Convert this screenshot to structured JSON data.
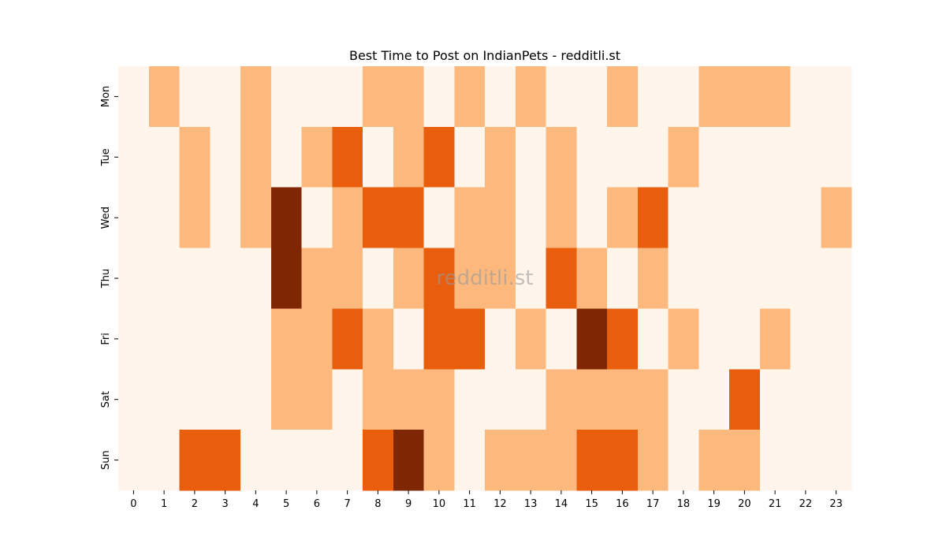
{
  "chart_data": {
    "type": "heatmap",
    "title": "Best Time to Post on IndianPets - redditli.st",
    "watermark": "redditli.st",
    "xlabel": "",
    "ylabel": "",
    "x_categories": [
      "0",
      "1",
      "2",
      "3",
      "4",
      "5",
      "6",
      "7",
      "8",
      "9",
      "10",
      "11",
      "12",
      "13",
      "14",
      "15",
      "16",
      "17",
      "18",
      "19",
      "20",
      "21",
      "22",
      "23"
    ],
    "y_categories": [
      "Mon",
      "Tue",
      "Wed",
      "Thu",
      "Fri",
      "Sat",
      "Sun"
    ],
    "value_levels": [
      0,
      1,
      2,
      3
    ],
    "values": [
      [
        0,
        1,
        0,
        0,
        1,
        0,
        0,
        0,
        1,
        1,
        0,
        1,
        0,
        1,
        0,
        0,
        1,
        0,
        0,
        1,
        1,
        1,
        0,
        0
      ],
      [
        0,
        0,
        1,
        0,
        1,
        0,
        1,
        2,
        0,
        1,
        2,
        0,
        1,
        0,
        1,
        0,
        0,
        0,
        1,
        0,
        0,
        0,
        0,
        0
      ],
      [
        0,
        0,
        1,
        0,
        1,
        3,
        0,
        1,
        2,
        2,
        0,
        1,
        1,
        0,
        1,
        0,
        1,
        2,
        0,
        0,
        0,
        0,
        0,
        1
      ],
      [
        0,
        0,
        0,
        0,
        0,
        3,
        1,
        1,
        0,
        1,
        2,
        1,
        1,
        0,
        2,
        1,
        0,
        1,
        0,
        0,
        0,
        0,
        0,
        0
      ],
      [
        0,
        0,
        0,
        0,
        0,
        1,
        1,
        2,
        1,
        0,
        2,
        2,
        0,
        1,
        0,
        3,
        2,
        0,
        1,
        0,
        0,
        1,
        0,
        0
      ],
      [
        0,
        0,
        0,
        0,
        0,
        1,
        1,
        0,
        1,
        1,
        1,
        0,
        0,
        0,
        1,
        1,
        1,
        1,
        0,
        0,
        2,
        0,
        0,
        0
      ],
      [
        0,
        0,
        2,
        2,
        0,
        0,
        0,
        0,
        2,
        3,
        1,
        0,
        1,
        1,
        1,
        2,
        2,
        1,
        0,
        1,
        1,
        0,
        0,
        0
      ]
    ],
    "colors": [
      "#fff5eb",
      "#fdb97d",
      "#e95e0d",
      "#7f2704"
    ],
    "colorbar": false,
    "grid": false
  }
}
